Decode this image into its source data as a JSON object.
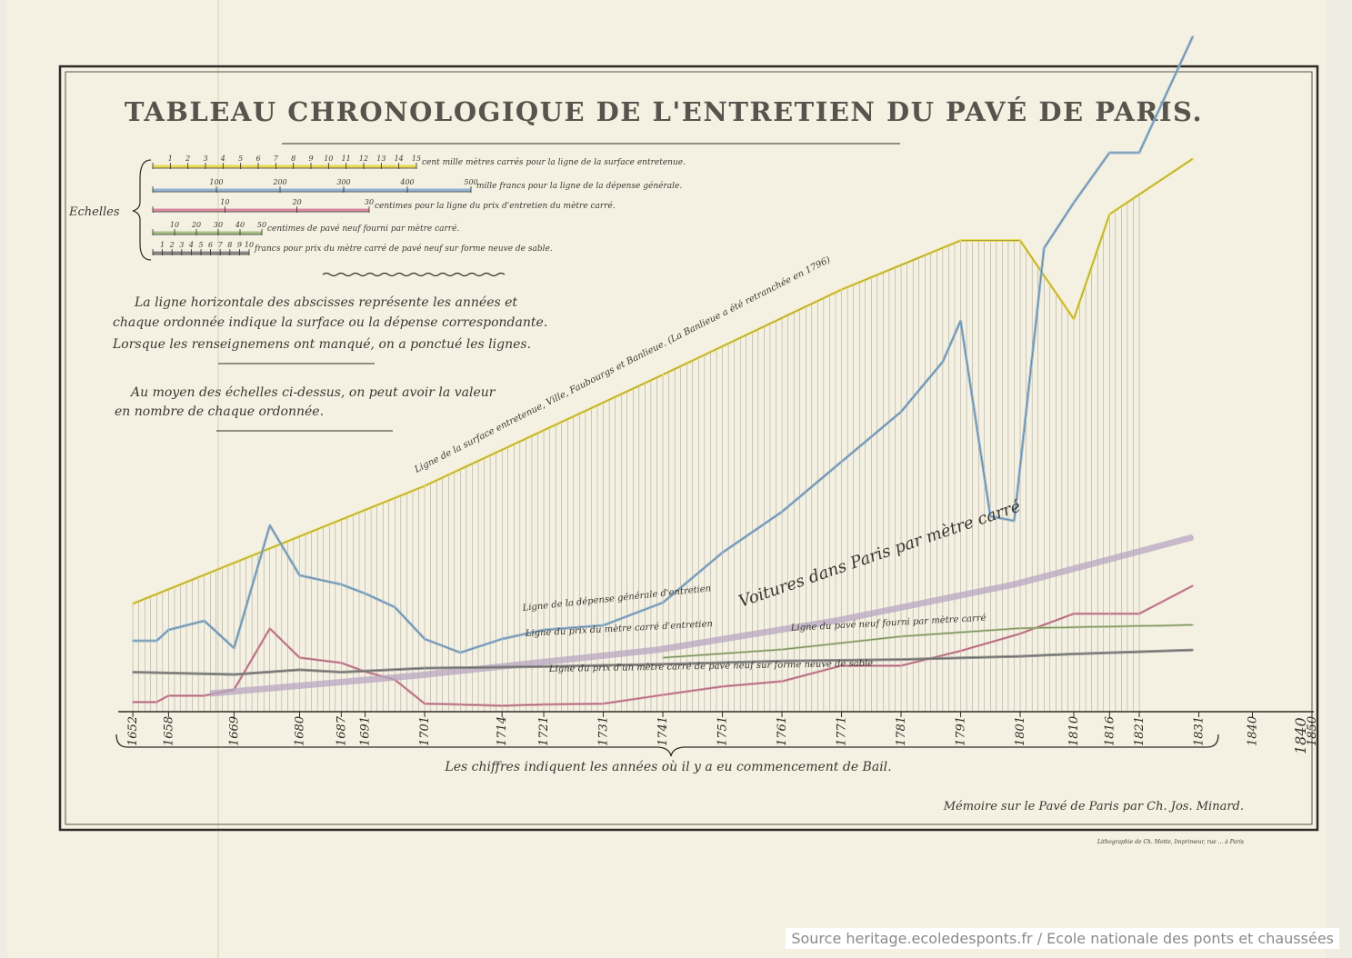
{
  "source_credit": "Source heritage.ecoledesponts.fr / Ecole nationale des ponts et chaussées",
  "colors": {
    "paper": "#f5f1e2",
    "surface": "#e8d94e",
    "depense": "#8fb5d4",
    "prix_entretien": "#d98aa0",
    "voitures": "#b7a6c0",
    "pave_neuf": "#a8bf86",
    "pave_sable": "#8a8a8a",
    "ink": "#2e2b26"
  },
  "chart_data": {
    "type": "line",
    "title": "TABLEAU CHRONOLOGIQUE DE L'ENTRETIEN DU PAVÉ DE PARIS.",
    "scales_label": "Echelles",
    "scales": [
      {
        "ticks": [
          "1",
          "2",
          "3",
          "4",
          "5",
          "6",
          "7",
          "8",
          "9",
          "10",
          "11",
          "12",
          "13",
          "14",
          "15"
        ],
        "text": "cent mille mètres carrés pour la ligne de la surface entretenue.",
        "color": "#e8d94e"
      },
      {
        "ticks": [
          "100",
          "200",
          "300",
          "400",
          "500"
        ],
        "text": "mille francs pour la ligne de la dépense générale.",
        "color": "#8fb5d4"
      },
      {
        "ticks": [
          "10",
          "20",
          "30"
        ],
        "text": "centimes pour la ligne du prix d'entretien du mètre carré.",
        "color": "#d98aa0"
      },
      {
        "ticks": [
          "10",
          "20",
          "30",
          "40",
          "50"
        ],
        "text": "centimes de pavé neuf fourni par mètre carré.",
        "color": "#a8bf86"
      },
      {
        "ticks": [
          "1",
          "2",
          "3",
          "4",
          "5",
          "6",
          "7",
          "8",
          "9",
          "10"
        ],
        "text": "francs pour prix du mètre carré de pavé neuf sur forme neuve de sable.",
        "color": "#8a8a8a"
      }
    ],
    "notes": [
      "La ligne horizontale des abscisses représente les années et",
      "chaque ordonnée indique la surface ou la dépense correspondante.",
      "Lorsque les renseignemens ont manqué, on a ponctué les lignes.",
      "Au moyen des échelles ci-dessus, on peut avoir la valeur",
      "en nombre de chaque ordonnée."
    ],
    "x_ticks": [
      1652,
      1658,
      1669,
      1680,
      1687,
      1691,
      1701,
      1714,
      1721,
      1731,
      1741,
      1751,
      1761,
      1771,
      1781,
      1791,
      1801,
      1810,
      1816,
      1821,
      1831,
      1840,
      1850
    ],
    "x_tick_labels": [
      "1652",
      "1658",
      "1669",
      "1680",
      "1687",
      "1691",
      "1701",
      "1714",
      "1721",
      "1731",
      "1741",
      "1751",
      "1761",
      "1771",
      "1781",
      "1791",
      "1801",
      "1810",
      "1816",
      "1821",
      "1831",
      "1840",
      "1850"
    ],
    "xlim": [
      1650,
      1850
    ],
    "xlabel": "Les chiffres indiquent les années où il y a eu commencement de Bail.",
    "series": [
      {
        "name": "Ligne de la surface entretenue, Ville, Faubourgs et Banlieue. (La Banlieue a été retranchée en 1796)",
        "key": "surface",
        "unit": "cent mille m²",
        "x": [
          1652,
          1701,
          1741,
          1771,
          1791,
          1801,
          1810,
          1816,
          1830
        ],
        "y": [
          3.3,
          6.9,
          10.3,
          12.9,
          14.4,
          14.4,
          12.0,
          15.2,
          16.9
        ]
      },
      {
        "name": "Ligne de la dépense générale d'entretien",
        "key": "depense",
        "unit": "mille francs",
        "x": [
          1652,
          1656,
          1658,
          1664,
          1669,
          1675,
          1680,
          1687,
          1691,
          1696,
          1701,
          1707,
          1714,
          1721,
          1731,
          1741,
          1751,
          1761,
          1771,
          1781,
          1788,
          1791,
          1796,
          1800,
          1805,
          1810,
          1816,
          1821,
          1830
        ],
        "y": [
          78,
          78,
          90,
          100,
          70,
          205,
          150,
          140,
          130,
          115,
          80,
          65,
          80,
          90,
          95,
          120,
          175,
          220,
          275,
          330,
          385,
          430,
          215,
          210,
          510,
          560,
          615,
          615,
          1010
        ]
      },
      {
        "name": "Ligne du prix du mètre carré d'entretien",
        "key": "prix_entretien",
        "unit": "centimes",
        "x": [
          1652,
          1656,
          1658,
          1664,
          1669,
          1675,
          1680,
          1687,
          1691,
          1696,
          1701,
          1707,
          1714,
          1721,
          1731,
          1741,
          1751,
          1761,
          1771,
          1781,
          1791,
          1801,
          1810,
          1816,
          1821,
          1830
        ],
        "y": [
          2.4,
          2.4,
          4.0,
          4.0,
          5.5,
          20.8,
          13.5,
          12.2,
          10.0,
          8.0,
          2.0,
          1.8,
          1.5,
          1.8,
          2.0,
          4.2,
          6.3,
          7.6,
          11.5,
          11.5,
          15.2,
          19.5,
          24.5,
          24.5,
          24.5,
          31.5
        ]
      },
      {
        "name": "Voitures dans Paris par mètre carré",
        "key": "voitures",
        "unit": "",
        "x": [
          1665,
          1700,
          1740,
          1770,
          1800,
          1830
        ],
        "y": [
          2.5,
          5.0,
          8.5,
          12.5,
          17.5,
          24.0
        ]
      },
      {
        "name": "Ligne du pavé neuf fourni par mètre carré",
        "key": "pave_neuf",
        "unit": "centimes",
        "x": [
          1741,
          1761,
          1781,
          1801,
          1830
        ],
        "y": [
          16.5,
          19.0,
          23.0,
          25.5,
          26.5
        ]
      },
      {
        "name": "Ligne du prix d'un mètre carré de pavé neuf sur forme neuve de sable",
        "key": "pave_sable",
        "unit": "francs",
        "x": [
          1652,
          1669,
          1680,
          1687,
          1701,
          1721,
          1741,
          1761,
          1781,
          1801,
          1810,
          1830
        ],
        "y": [
          5.0,
          4.7,
          5.3,
          5.0,
          5.5,
          5.7,
          6.0,
          6.4,
          6.6,
          7.0,
          7.3,
          7.8
        ]
      }
    ],
    "annotations": [
      {
        "text": "Ligne de la surface entretenue, Ville, Faubourgs et Banlieue. (La Banlieue a été retranchée en 1796)"
      },
      {
        "text": "Ligne de la dépense générale d'entretien"
      },
      {
        "text": "Ligne du prix du mètre carré d'entretien"
      },
      {
        "text": "Voitures dans Paris par mètre carré"
      },
      {
        "text": "Ligne du pavé neuf fourni par mètre carré"
      },
      {
        "text": "Ligne du prix d'un mètre carré de pavé neuf sur forme neuve de sable"
      }
    ],
    "signature": "Mémoire sur le Pavé de Paris par Ch. Jos. Minard.",
    "imprint": "Lithographie de Ch. Motte, Imprimeur, rue ... à Paris",
    "corner_note": "1840",
    "grid": true
  }
}
